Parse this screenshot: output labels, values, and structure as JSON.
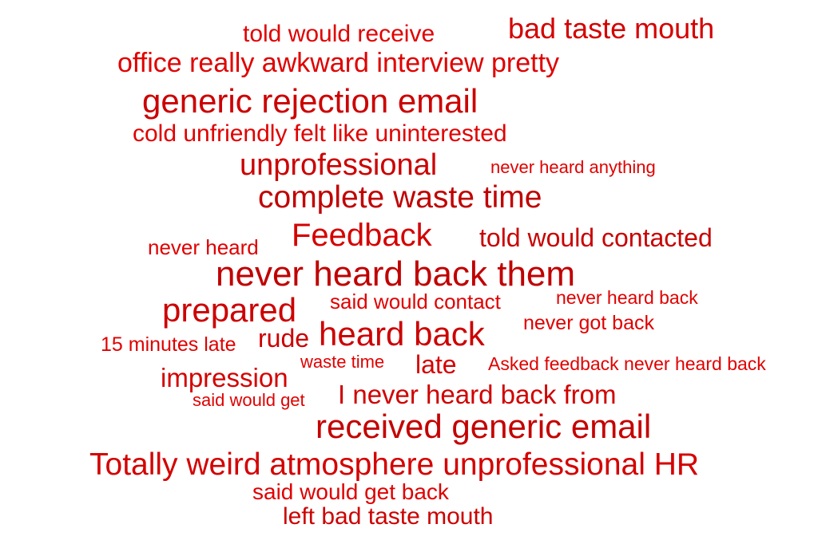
{
  "colors": {
    "primary": "#e00000",
    "dark": "#c00000"
  },
  "words": [
    "told would receive",
    "bad taste mouth",
    "office really awkward interview pretty",
    "generic rejection email",
    "cold unfriendly felt like uninterested",
    "unprofessional",
    "never heard anything",
    "complete waste time",
    "never heard",
    "Feedback",
    "told would contacted",
    "never heard back them",
    "prepared",
    "said would contact",
    "never heard back",
    "15 minutes late",
    "rude",
    "heard back",
    "never got back",
    "waste time",
    "late",
    "Asked feedback never heard back",
    "impression",
    "said would get",
    "I never heard back from",
    "received generic email",
    "Totally weird atmosphere unprofessional HR",
    "said would get back",
    "left bad taste mouth"
  ]
}
